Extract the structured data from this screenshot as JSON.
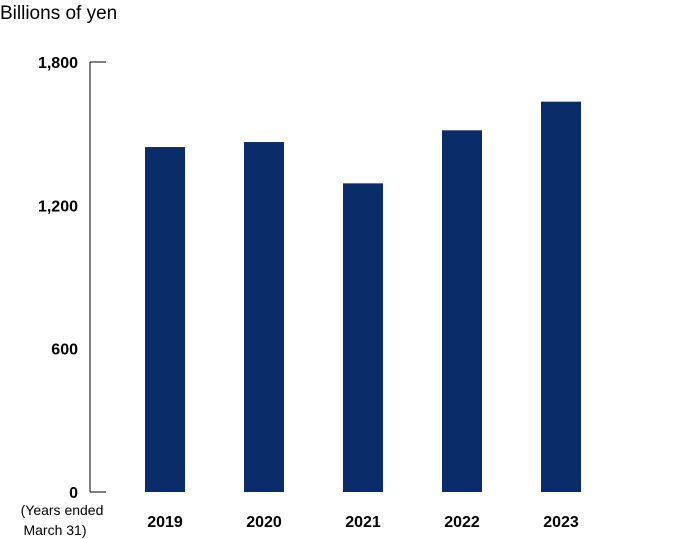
{
  "chart_data": {
    "type": "bar",
    "unit_label": "Billions of yen",
    "axis_note": [
      "(Years ended",
      "March 31)"
    ],
    "categories": [
      "2019",
      "2020",
      "2021",
      "2022",
      "2023"
    ],
    "values": [
      1444,
      1465,
      1292,
      1514,
      1634
    ],
    "yticks": [
      0,
      600,
      1200,
      1800
    ],
    "ytick_labels": [
      "0",
      "600",
      "1,200",
      "1,800"
    ],
    "ylim": [
      0,
      1800
    ],
    "bar_color": "#0a2d69",
    "grid": false,
    "legend": "none"
  }
}
